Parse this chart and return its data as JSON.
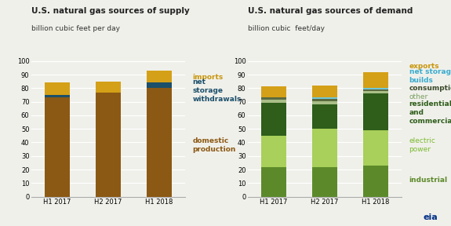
{
  "supply_title": "U.S. natural gas sources of supply",
  "supply_subtitle": "billion cubic feet per day",
  "demand_title": "U.S. natural gas sources of demand",
  "demand_subtitle": "billion cubic  feet/day",
  "categories": [
    "H1 2017",
    "H2 2017",
    "H1 2018"
  ],
  "supply": {
    "domestic_production": [
      73,
      77,
      80
    ],
    "net_storage_withdrawals": [
      2,
      0,
      4
    ],
    "imports": [
      9,
      8,
      9
    ]
  },
  "supply_colors": {
    "domestic_production": "#8B5913",
    "net_storage_withdrawals": "#1B4F6A",
    "imports": "#D4A017"
  },
  "demand": {
    "industrial": [
      22,
      22,
      23
    ],
    "electric_power": [
      23,
      28,
      26
    ],
    "residential_commercial": [
      24,
      18,
      27
    ],
    "other": [
      2.5,
      2.5,
      2
    ],
    "consumption": [
      1.5,
      1.5,
      1
    ],
    "net_storage_builds": [
      0.5,
      1,
      1
    ],
    "exports": [
      8,
      9,
      12
    ]
  },
  "demand_colors": {
    "industrial": "#5C8A2A",
    "electric_power": "#A8D05A",
    "residential_commercial": "#2E5E1A",
    "other": "#AABF88",
    "consumption": "#5A6B40",
    "net_storage_builds": "#6EC6D8",
    "exports": "#D4A017"
  },
  "ylim": [
    0,
    100
  ],
  "yticks": [
    0,
    10,
    20,
    30,
    40,
    50,
    60,
    70,
    80,
    90,
    100
  ],
  "bg_color": "#F0F0EB",
  "grid_color": "#FFFFFF",
  "supply_label_colors": {
    "imports": "#C8960C",
    "net_storage_withdrawals": "#1B4F6A",
    "domestic_production": "#8B5913"
  },
  "demand_label_colors": {
    "exports": "#C8960C",
    "net_storage_builds": "#3AACCE",
    "consumption": "#3A4A2A",
    "other": "#7A9F60",
    "residential_commercial": "#2E5E1A",
    "electric_power": "#7ABB30",
    "industrial": "#5C8A2A"
  }
}
